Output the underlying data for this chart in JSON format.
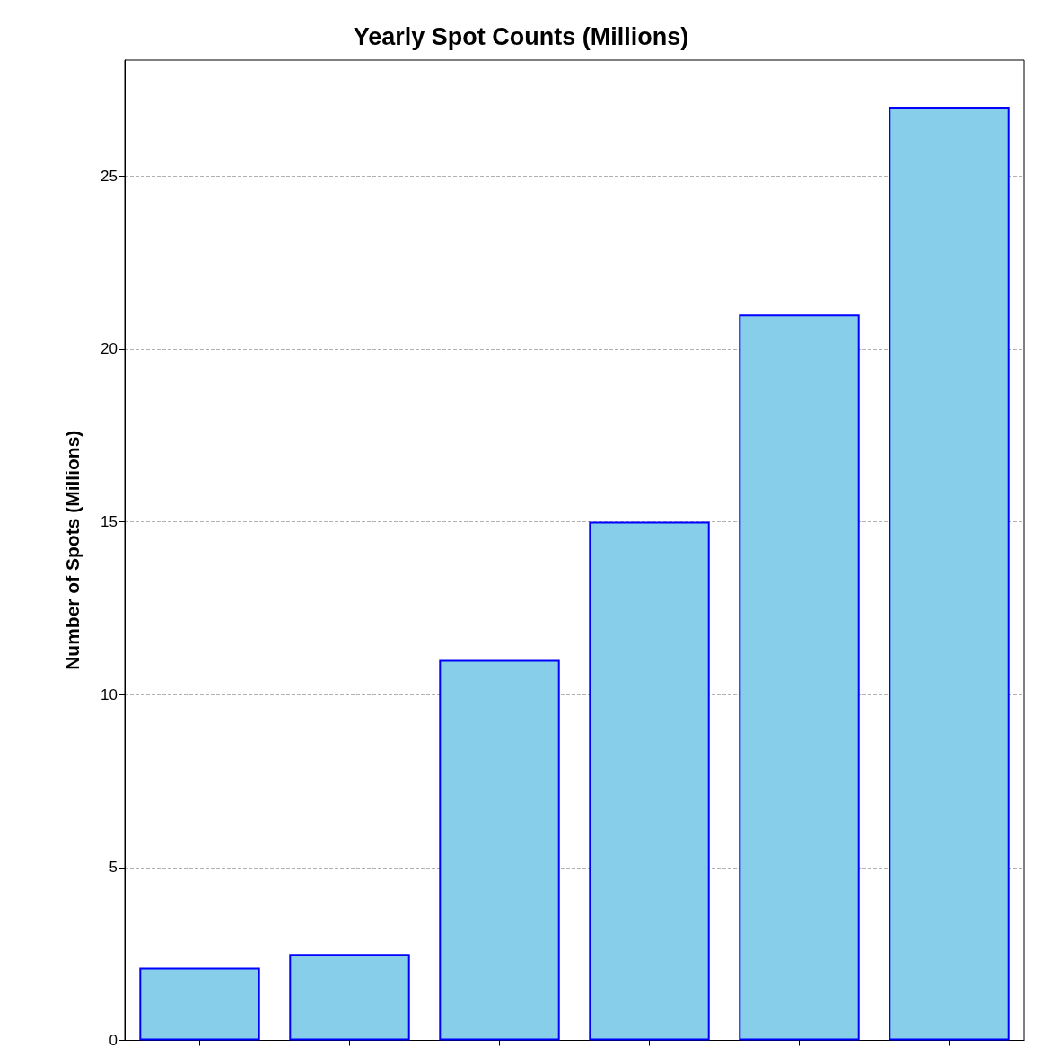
{
  "chart_data": {
    "type": "bar",
    "title": "Yearly Spot Counts (Millions)",
    "ylabel": "Number of Spots (Millions)",
    "categories": [
      null,
      null,
      null,
      null,
      null,
      null
    ],
    "series": [
      {
        "color": "#87ceeb",
        "values": [
          2.1,
          2.5,
          11,
          15,
          21,
          27
        ]
      }
    ],
    "ylim": [
      0,
      28.35
    ],
    "yticks": [
      0,
      5,
      10,
      15,
      20,
      25
    ],
    "grid": "y",
    "tick_labels": "y"
  }
}
